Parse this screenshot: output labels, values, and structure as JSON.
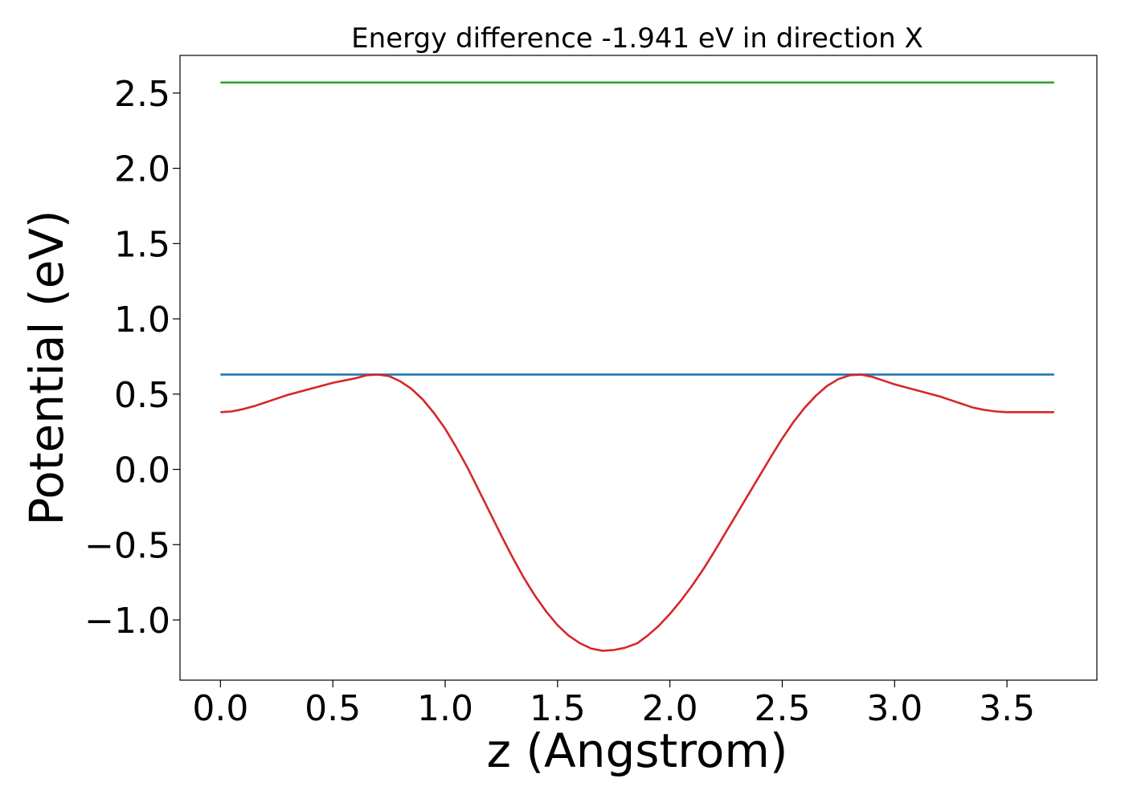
{
  "chart_data": {
    "type": "line",
    "title": "Energy difference -1.941 eV in direction X",
    "xlabel": "z (Angstrom)",
    "ylabel": "Potential (eV)",
    "xlim": [
      -0.18,
      3.9
    ],
    "ylim": [
      -1.4,
      2.75
    ],
    "xticks": [
      0.0,
      0.5,
      1.0,
      1.5,
      2.0,
      2.5,
      3.0,
      3.5
    ],
    "xtick_labels": [
      "0.0",
      "0.5",
      "1.0",
      "1.5",
      "2.0",
      "2.5",
      "3.0",
      "3.5"
    ],
    "yticks": [
      -1.0,
      -0.5,
      0.0,
      0.5,
      1.0,
      1.5,
      2.0,
      2.5
    ],
    "ytick_labels": [
      "−1.0",
      "−0.5",
      "0.0",
      "0.5",
      "1.0",
      "1.5",
      "2.0",
      "2.5"
    ],
    "grid": false,
    "series": [
      {
        "color": "#2ca02c",
        "x": [
          0.0,
          3.71
        ],
        "y": [
          2.57,
          2.57
        ]
      },
      {
        "color": "#1f77b4",
        "x": [
          0.0,
          3.71
        ],
        "y": [
          0.63,
          0.63
        ]
      },
      {
        "color": "#d62728",
        "x": [
          0.0,
          0.05,
          0.1,
          0.15,
          0.2,
          0.25,
          0.3,
          0.35,
          0.4,
          0.45,
          0.5,
          0.55,
          0.6,
          0.65,
          0.7,
          0.75,
          0.8,
          0.85,
          0.9,
          0.95,
          1.0,
          1.05,
          1.1,
          1.15,
          1.2,
          1.25,
          1.3,
          1.35,
          1.4,
          1.45,
          1.5,
          1.55,
          1.6,
          1.65,
          1.7,
          1.75,
          1.8,
          1.855,
          1.9,
          1.95,
          2.0,
          2.05,
          2.1,
          2.15,
          2.2,
          2.25,
          2.3,
          2.35,
          2.4,
          2.45,
          2.5,
          2.55,
          2.6,
          2.65,
          2.7,
          2.75,
          2.8,
          2.85,
          2.9,
          2.95,
          3.0,
          3.05,
          3.1,
          3.15,
          3.2,
          3.25,
          3.3,
          3.35,
          3.4,
          3.45,
          3.5,
          3.55,
          3.6,
          3.65,
          3.71
        ],
        "y": [
          0.38,
          0.385,
          0.4,
          0.42,
          0.445,
          0.47,
          0.495,
          0.515,
          0.535,
          0.555,
          0.575,
          0.59,
          0.605,
          0.625,
          0.63,
          0.62,
          0.585,
          0.535,
          0.465,
          0.375,
          0.27,
          0.145,
          0.01,
          -0.14,
          -0.29,
          -0.44,
          -0.585,
          -0.72,
          -0.84,
          -0.945,
          -1.035,
          -1.105,
          -1.155,
          -1.19,
          -1.205,
          -1.2,
          -1.185,
          -1.155,
          -1.105,
          -1.04,
          -0.96,
          -0.87,
          -0.77,
          -0.66,
          -0.54,
          -0.415,
          -0.29,
          -0.165,
          -0.04,
          0.085,
          0.205,
          0.315,
          0.41,
          0.49,
          0.555,
          0.6,
          0.625,
          0.63,
          0.615,
          0.59,
          0.565,
          0.545,
          0.525,
          0.505,
          0.485,
          0.46,
          0.435,
          0.41,
          0.395,
          0.385,
          0.38,
          0.38,
          0.38,
          0.38,
          0.38
        ]
      }
    ]
  }
}
